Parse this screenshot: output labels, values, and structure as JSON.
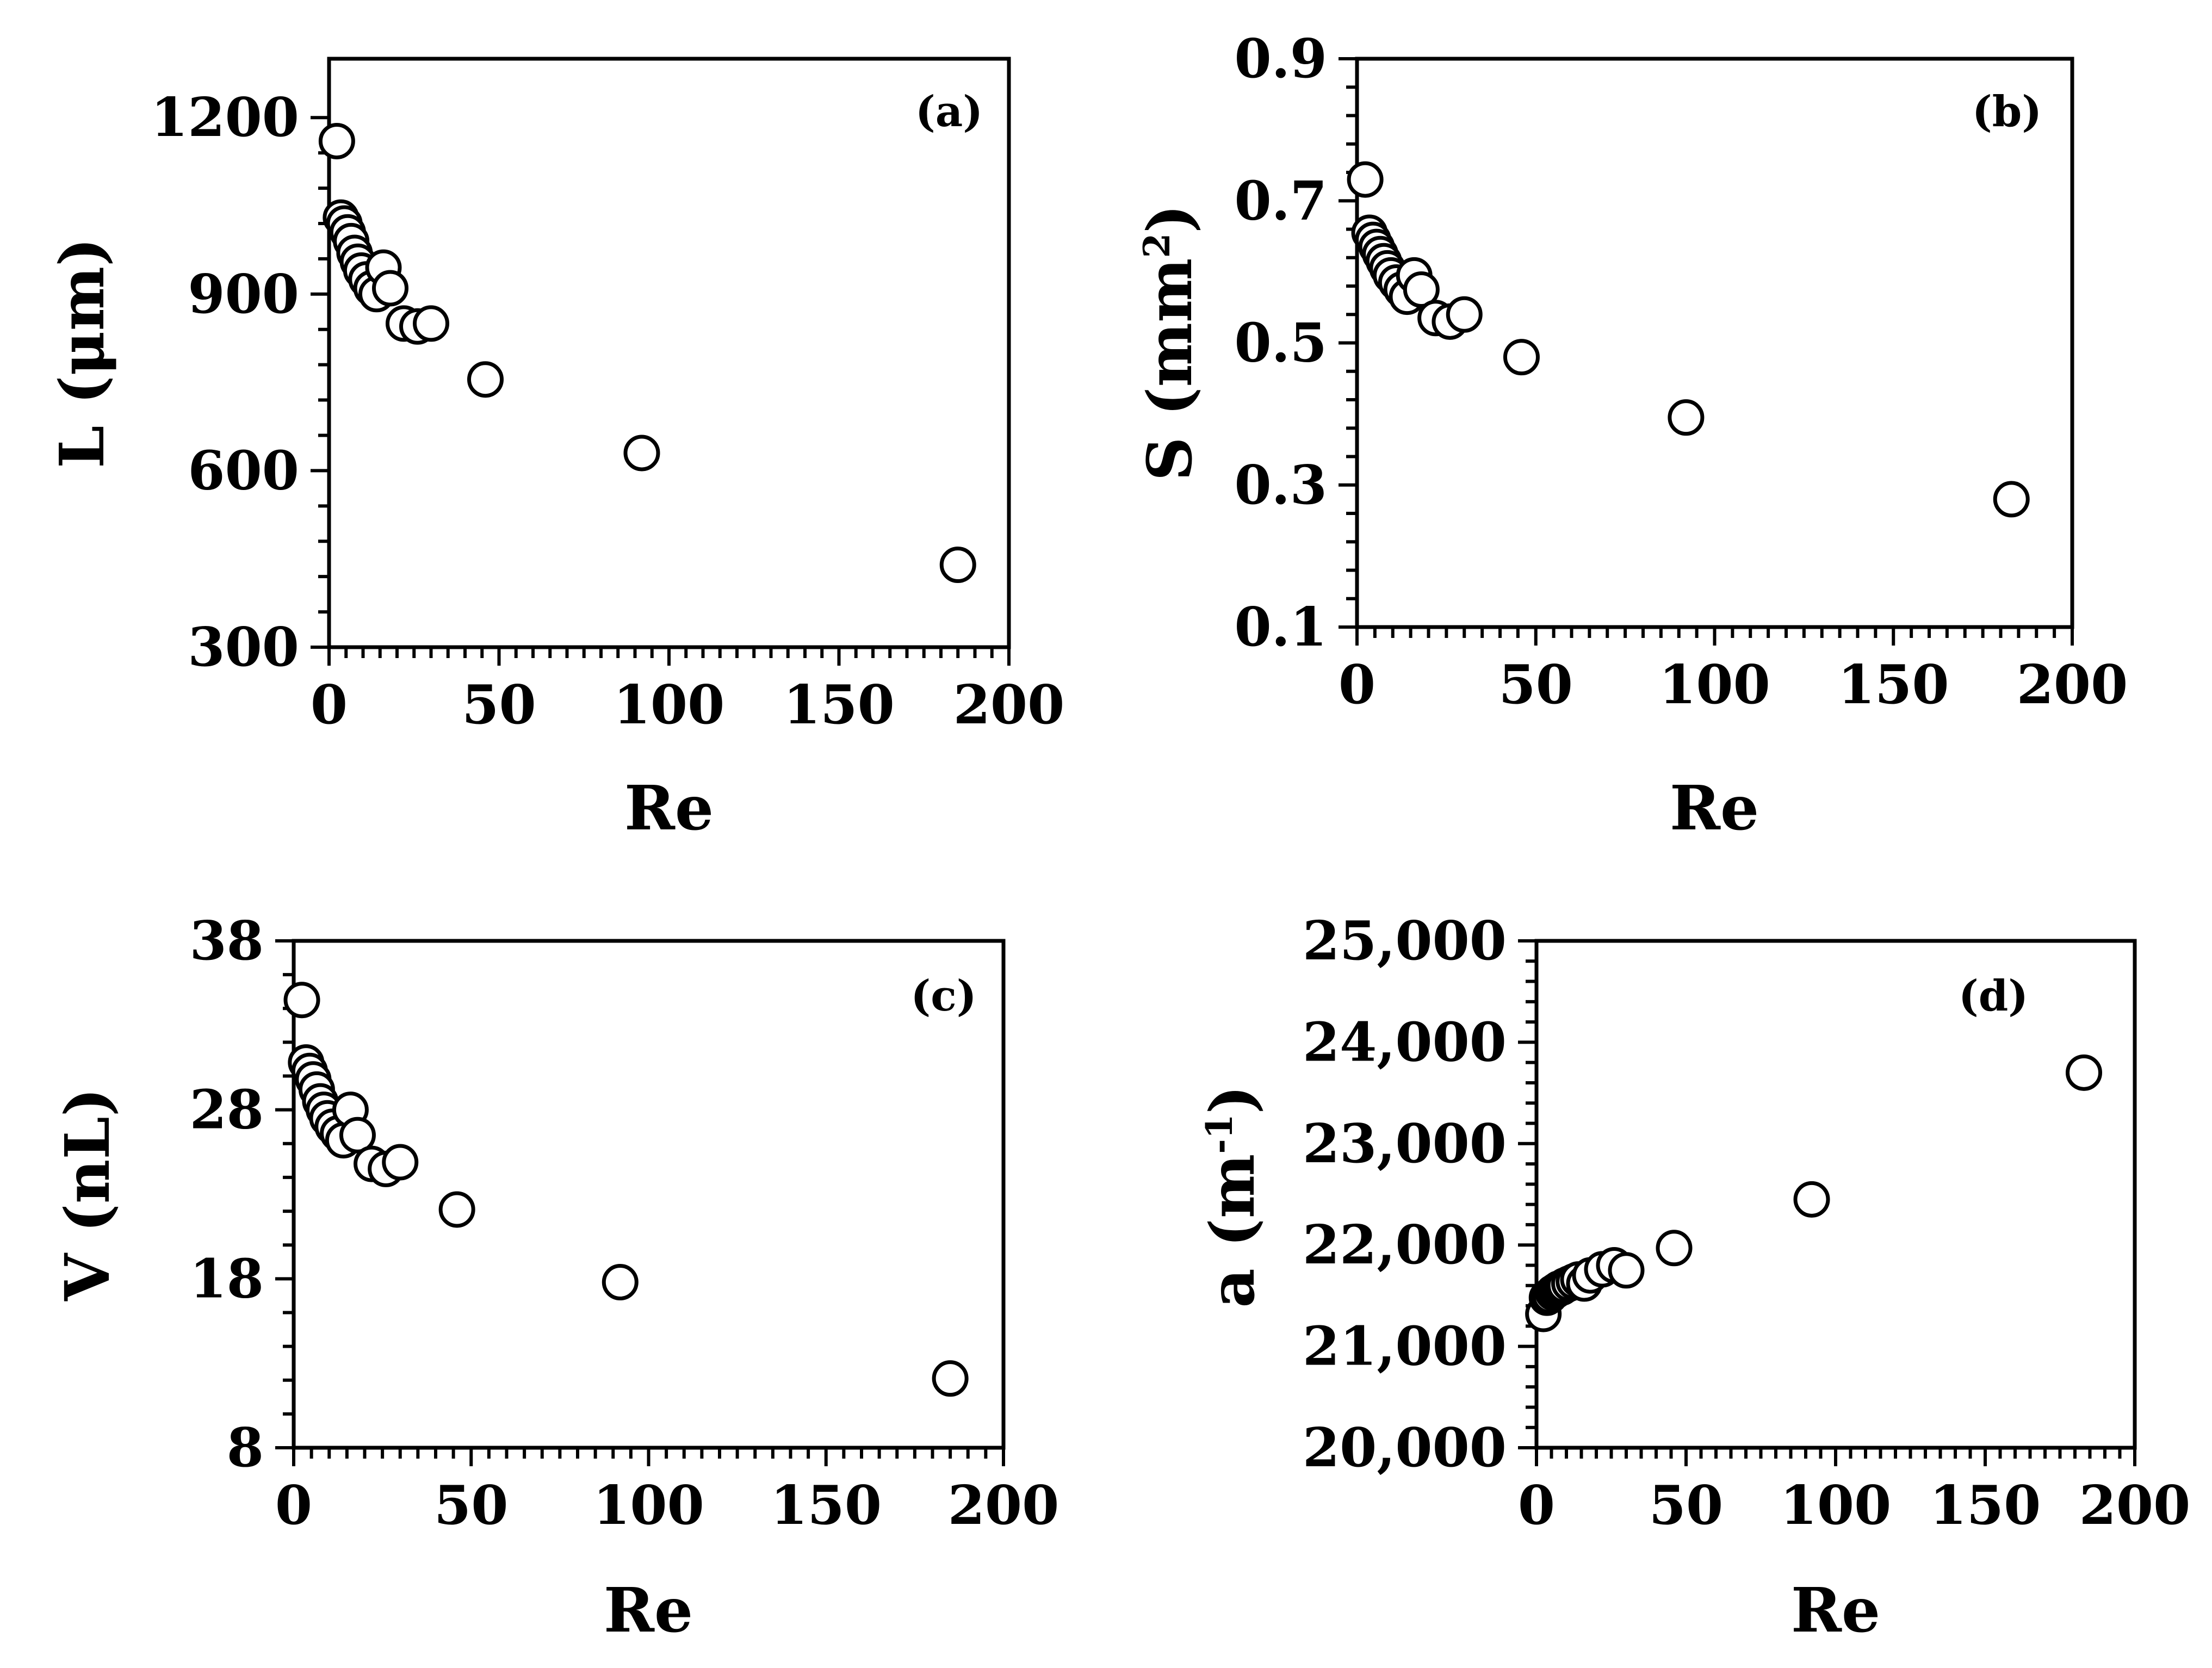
{
  "chart_data": [
    {
      "id": "a",
      "type": "scatter",
      "panel_label": "(a)",
      "xlabel": "Re",
      "ylabel": "L (μm)",
      "xlim": [
        0,
        200
      ],
      "ylim": [
        300,
        1300
      ],
      "x_ticks": [
        "0",
        "50",
        "100",
        "150",
        "200"
      ],
      "y_ticks": [
        "300",
        "600",
        "900",
        "1200"
      ],
      "x": [
        2.3,
        3.5,
        4.5,
        5.5,
        6.5,
        7.5,
        8.5,
        9.5,
        11,
        12.5,
        14,
        16,
        18,
        22,
        26,
        30,
        46,
        92,
        185
      ],
      "y": [
        1160,
        1030,
        1020,
        1005,
        990,
        970,
        955,
        940,
        925,
        910,
        900,
        945,
        910,
        850,
        845,
        850,
        755,
        630,
        440
      ]
    },
    {
      "id": "b",
      "type": "scatter",
      "panel_label": "(b)",
      "xlabel": "Re",
      "ylabel": "S (mm2)",
      "ylabel_main": "S (mm",
      "ylabel_sup": "2",
      "ylabel_end": ")",
      "xlim": [
        0,
        200
      ],
      "ylim": [
        0.1,
        0.9
      ],
      "x_ticks": [
        "0",
        "50",
        "100",
        "150",
        "200"
      ],
      "y_ticks": [
        "0.1",
        "0.3",
        "0.5",
        "0.7",
        "0.9"
      ],
      "x": [
        2.3,
        3.5,
        4.5,
        5.5,
        6.5,
        7.5,
        8.5,
        9.5,
        11,
        12.5,
        14,
        16,
        18,
        22,
        26,
        30,
        46,
        92,
        183
      ],
      "y": [
        0.73,
        0.655,
        0.645,
        0.635,
        0.625,
        0.615,
        0.605,
        0.595,
        0.585,
        0.575,
        0.565,
        0.595,
        0.575,
        0.535,
        0.53,
        0.54,
        0.48,
        0.395,
        0.28
      ]
    },
    {
      "id": "c",
      "type": "scatter",
      "panel_label": "(c)",
      "xlabel": "Re",
      "ylabel": "V (nL)",
      "xlim": [
        0,
        200
      ],
      "ylim": [
        8,
        38
      ],
      "x_ticks": [
        "0",
        "50",
        "100",
        "150",
        "200"
      ],
      "y_ticks": [
        "8",
        "18",
        "28",
        "38"
      ],
      "x": [
        2.3,
        3.5,
        4.5,
        5.5,
        6.5,
        7.5,
        8.5,
        9.5,
        11,
        12.5,
        14,
        16,
        18,
        22,
        26,
        30,
        46,
        92,
        185
      ],
      "y": [
        34.5,
        30.8,
        30.3,
        29.8,
        29.2,
        28.5,
        28,
        27.5,
        27,
        26.6,
        26.2,
        28,
        26.5,
        24.8,
        24.5,
        24.9,
        22.1,
        17.8,
        12.1
      ]
    },
    {
      "id": "d",
      "type": "scatter",
      "panel_label": "(d)",
      "xlabel": "Re",
      "ylabel": "a (m-1)",
      "ylabel_main": "a (m",
      "ylabel_sup": "-1",
      "ylabel_end": ")",
      "xlim": [
        0,
        200
      ],
      "ylim": [
        20000,
        25000
      ],
      "x_ticks": [
        "0",
        "50",
        "100",
        "150",
        "200"
      ],
      "y_ticks": [
        "20,000",
        "21,000",
        "22,000",
        "23,000",
        "24,000",
        "25,000"
      ],
      "x": [
        2.3,
        3.5,
        4.5,
        5.5,
        6.5,
        7.5,
        8.5,
        9.5,
        11,
        12.5,
        14,
        16,
        18,
        22,
        26,
        30,
        46,
        92,
        183
      ],
      "y": [
        21320,
        21480,
        21500,
        21530,
        21550,
        21570,
        21580,
        21600,
        21620,
        21640,
        21660,
        21620,
        21700,
        21760,
        21800,
        21750,
        21970,
        22450,
        23700
      ]
    }
  ]
}
